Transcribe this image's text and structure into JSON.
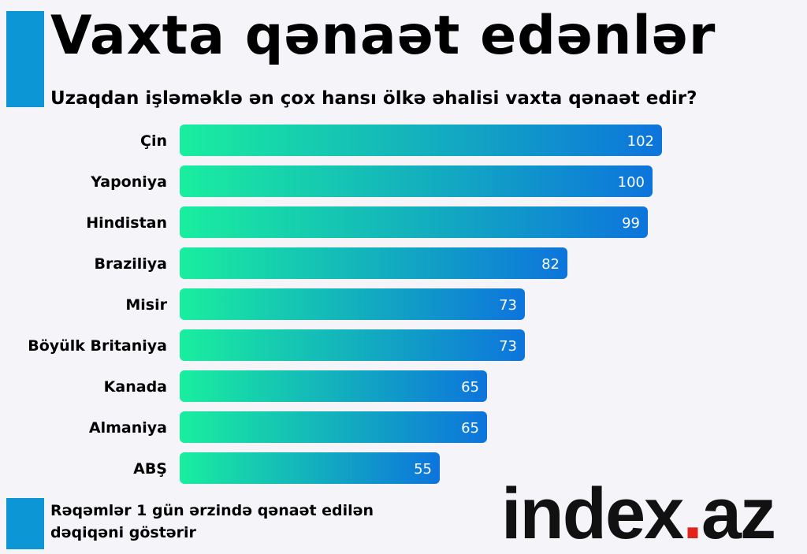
{
  "header": {
    "title": "Vaxta qənaət edənlər",
    "subtitle": "Uzaqdan işləməklə ən çox hansı ölkə əhalisi vaxta qənaət edir?"
  },
  "footnote": "Rəqəmlər 1 gün ərzində qənaət edilən dəqiqəni göstərir",
  "logo": {
    "main": "index",
    "dot": ".",
    "suffix": "az",
    "dot_color": "#e2231a"
  },
  "colors": {
    "accent": "#0c96d6",
    "bar_start": "#19ee9e",
    "bar_end": "#0d74dc"
  },
  "chart_data": {
    "type": "bar",
    "orientation": "horizontal",
    "categories": [
      "Çin",
      "Yaponiya",
      "Hindistan",
      "Braziliya",
      "Misir",
      "Böyülk Britaniya",
      "Kanada",
      "Almaniya",
      "ABŞ"
    ],
    "values": [
      102,
      100,
      99,
      82,
      73,
      73,
      65,
      65,
      55
    ],
    "title": "Vaxta qənaət edənlər",
    "subtitle": "Uzaqdan işləməklə ən çox hansı ölkə əhalisi vaxta qənaət edir?",
    "xlabel": "",
    "ylabel": "",
    "xlim": [
      0,
      102
    ],
    "grid": false,
    "data_labels": true
  }
}
